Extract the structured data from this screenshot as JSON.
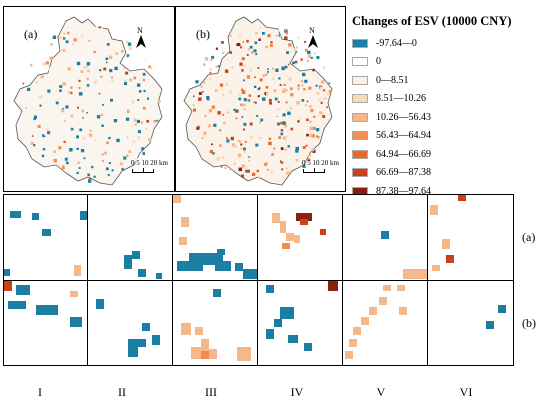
{
  "maps": {
    "a": {
      "label": "(a)"
    },
    "b": {
      "label": "(b)"
    },
    "north_letter": "N",
    "scale_text": "0 5 10  20 km"
  },
  "legend": {
    "title": "Changes of ESV (10000 CNY)",
    "items": [
      {
        "label": "-97.64—0",
        "color": "#1a7fa3"
      },
      {
        "label": "0",
        "color": "#ffffff"
      },
      {
        "label": "0—8.51",
        "color": "#fdf0e4"
      },
      {
        "label": "8.51—10.26",
        "color": "#f9d9b9"
      },
      {
        "label": "10.26—56.43",
        "color": "#f5b88a"
      },
      {
        "label": "56.43—64.94",
        "color": "#f08c54"
      },
      {
        "label": "64.94—66.69",
        "color": "#e96a1e"
      },
      {
        "label": "66.69—87.38",
        "color": "#c9421c"
      },
      {
        "label": "87.38—97.64",
        "color": "#8b1f0e"
      }
    ]
  },
  "grid": {
    "row_labels": [
      "(a)",
      "(b)"
    ],
    "col_labels": [
      "I",
      "II",
      "III",
      "IV",
      "V",
      "VI"
    ]
  }
}
